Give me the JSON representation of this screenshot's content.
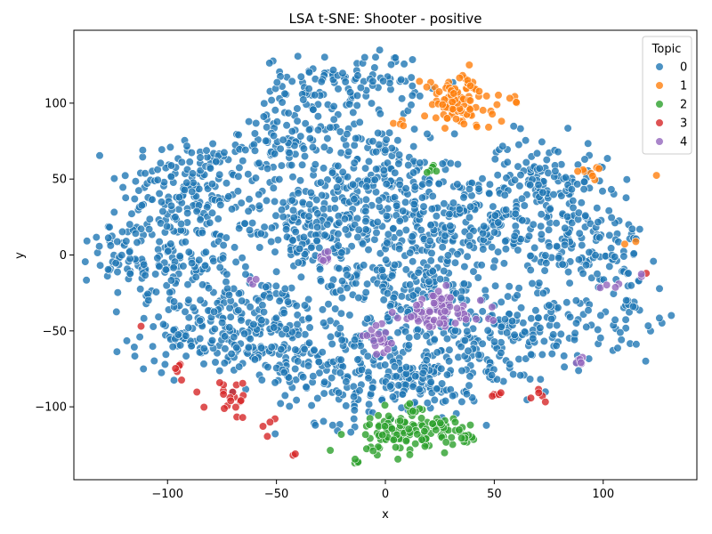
{
  "chart_data": {
    "type": "scatter",
    "title": "LSA t-SNE: Shooter - positive",
    "xlabel": "x",
    "ylabel": "y",
    "xlim": [
      -143,
      143
    ],
    "ylim": [
      -148,
      148
    ],
    "xticks": [
      -100,
      -50,
      0,
      50,
      100
    ],
    "yticks": [
      -100,
      -50,
      0,
      50,
      100
    ],
    "grid": false,
    "legend": {
      "title": "Topic",
      "placement": "top-right"
    },
    "series": [
      {
        "name": "0",
        "color": "#1f77b4",
        "clusters": [
          {
            "cx": -90,
            "cy": 45,
            "sx": 16,
            "sy": 18,
            "n": 160
          },
          {
            "cx": -100,
            "cy": -5,
            "sx": 15,
            "sy": 14,
            "n": 140
          },
          {
            "cx": -85,
            "cy": -50,
            "sx": 16,
            "sy": 14,
            "n": 120
          },
          {
            "cx": -45,
            "cy": 70,
            "sx": 14,
            "sy": 12,
            "n": 90
          },
          {
            "cx": -35,
            "cy": 110,
            "sx": 10,
            "sy": 10,
            "n": 60
          },
          {
            "cx": -5,
            "cy": 115,
            "sx": 12,
            "sy": 10,
            "n": 60
          },
          {
            "cx": -5,
            "cy": 45,
            "sx": 18,
            "sy": 22,
            "n": 220
          },
          {
            "cx": -40,
            "cy": 20,
            "sx": 14,
            "sy": 14,
            "n": 110
          },
          {
            "cx": -55,
            "cy": -50,
            "sx": 15,
            "sy": 18,
            "n": 150
          },
          {
            "cx": -20,
            "cy": -75,
            "sx": 15,
            "sy": 18,
            "n": 140
          },
          {
            "cx": 10,
            "cy": -20,
            "sx": 18,
            "sy": 20,
            "n": 180
          },
          {
            "cx": 40,
            "cy": 20,
            "sx": 18,
            "sy": 18,
            "n": 200
          },
          {
            "cx": 75,
            "cy": 50,
            "sx": 14,
            "sy": 14,
            "n": 120
          },
          {
            "cx": 90,
            "cy": 5,
            "sx": 15,
            "sy": 15,
            "n": 130
          },
          {
            "cx": 45,
            "cy": -60,
            "sx": 16,
            "sy": 18,
            "n": 160
          },
          {
            "cx": 10,
            "cy": -85,
            "sx": 14,
            "sy": 10,
            "n": 90
          },
          {
            "cx": 75,
            "cy": -45,
            "sx": 12,
            "sy": 12,
            "n": 60
          },
          {
            "cx": 110,
            "cy": -40,
            "sx": 10,
            "sy": 15,
            "n": 40
          },
          {
            "cx": -25,
            "cy": 0,
            "sx": 10,
            "sy": 30,
            "n": 80
          },
          {
            "cx": -120,
            "cy": 15,
            "sx": 6,
            "sy": 8,
            "n": 25
          }
        ]
      },
      {
        "name": "1",
        "color": "#ff7f0e",
        "clusters": [
          {
            "cx": 33,
            "cy": 100,
            "sx": 8,
            "sy": 9,
            "n": 110
          },
          {
            "cx": 95,
            "cy": 57,
            "sx": 3,
            "sy": 3,
            "n": 8
          },
          {
            "cx": 60,
            "cy": 101,
            "sx": 3,
            "sy": 2,
            "n": 4
          },
          {
            "cx": 8,
            "cy": 86,
            "sx": 2,
            "sy": 2,
            "n": 4
          },
          {
            "cx": 126,
            "cy": 50,
            "sx": 1,
            "sy": 1,
            "n": 1
          },
          {
            "cx": 113,
            "cy": 7,
            "sx": 1,
            "sy": 1,
            "n": 2
          }
        ]
      },
      {
        "name": "2",
        "color": "#2ca02c",
        "clusters": [
          {
            "cx": 5,
            "cy": -115,
            "sx": 10,
            "sy": 8,
            "n": 90
          },
          {
            "cx": 23,
            "cy": -118,
            "sx": 8,
            "sy": 5,
            "n": 45
          },
          {
            "cx": 22,
            "cy": 60,
            "sx": 2,
            "sy": 4,
            "n": 6
          },
          {
            "cx": 36,
            "cy": -120,
            "sx": 2,
            "sy": 2,
            "n": 4
          },
          {
            "cx": -12,
            "cy": -135,
            "sx": 2,
            "sy": 1,
            "n": 4
          }
        ]
      },
      {
        "name": "3",
        "color": "#d62728",
        "clusters": [
          {
            "cx": -70,
            "cy": -95,
            "sx": 6,
            "sy": 6,
            "n": 20
          },
          {
            "cx": -52,
            "cy": -112,
            "sx": 2,
            "sy": 4,
            "n": 4
          },
          {
            "cx": -95,
            "cy": -75,
            "sx": 4,
            "sy": 4,
            "n": 5
          },
          {
            "cx": 50,
            "cy": -92,
            "sx": 3,
            "sy": 3,
            "n": 5
          },
          {
            "cx": 70,
            "cy": -92,
            "sx": 3,
            "sy": 4,
            "n": 5
          },
          {
            "cx": -42,
            "cy": -131,
            "sx": 1,
            "sy": 1,
            "n": 2
          },
          {
            "cx": 120,
            "cy": -13,
            "sx": 1,
            "sy": 1,
            "n": 1
          },
          {
            "cx": -112,
            "cy": -47,
            "sx": 1,
            "sy": 1,
            "n": 1
          }
        ]
      },
      {
        "name": "4",
        "color": "#9467bd",
        "clusters": [
          {
            "cx": 25,
            "cy": -38,
            "sx": 10,
            "sy": 7,
            "n": 70
          },
          {
            "cx": -28,
            "cy": -2,
            "sx": 2,
            "sy": 2,
            "n": 10
          },
          {
            "cx": -2,
            "cy": -55,
            "sx": 4,
            "sy": 6,
            "n": 20
          },
          {
            "cx": 90,
            "cy": -70,
            "sx": 3,
            "sy": 1,
            "n": 6
          },
          {
            "cx": 102,
            "cy": -20,
            "sx": 3,
            "sy": 1,
            "n": 4
          },
          {
            "cx": -62,
            "cy": -17,
            "sx": 2,
            "sy": 1,
            "n": 3
          },
          {
            "cx": 118,
            "cy": -13,
            "sx": 1,
            "sy": 1,
            "n": 2
          }
        ]
      }
    ]
  }
}
